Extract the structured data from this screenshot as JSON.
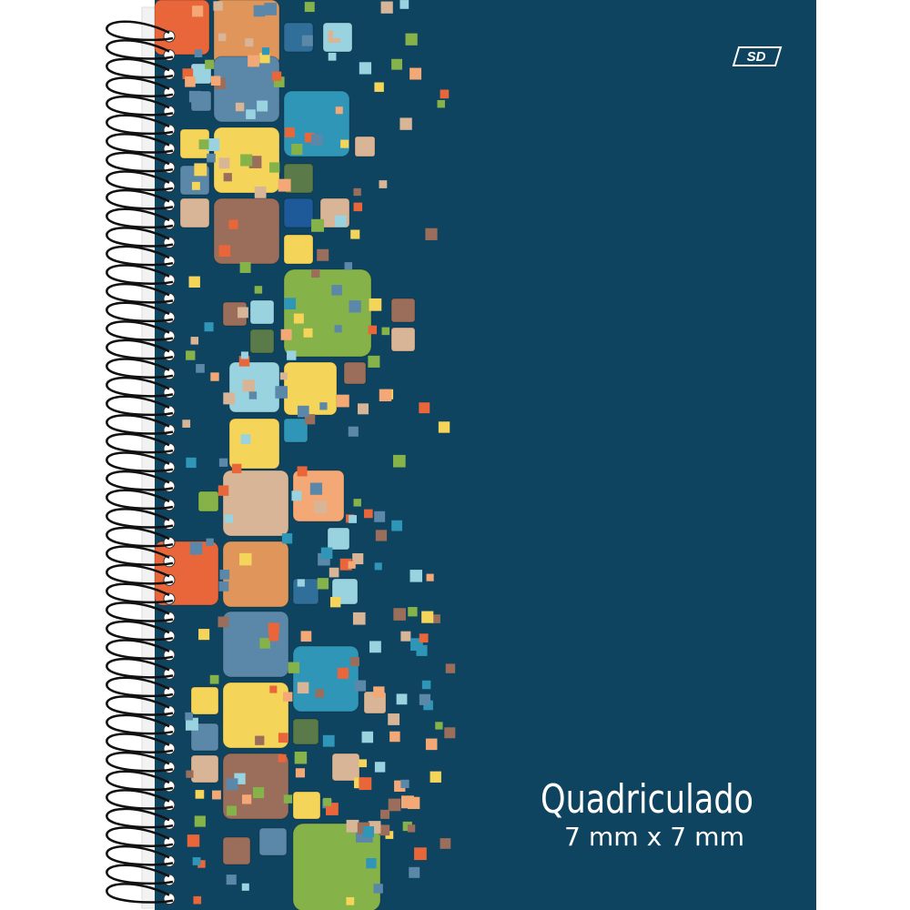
{
  "cover": {
    "logo": "SD",
    "title": "Quadriculado",
    "subtitle": "7 mm x 7 mm"
  }
}
